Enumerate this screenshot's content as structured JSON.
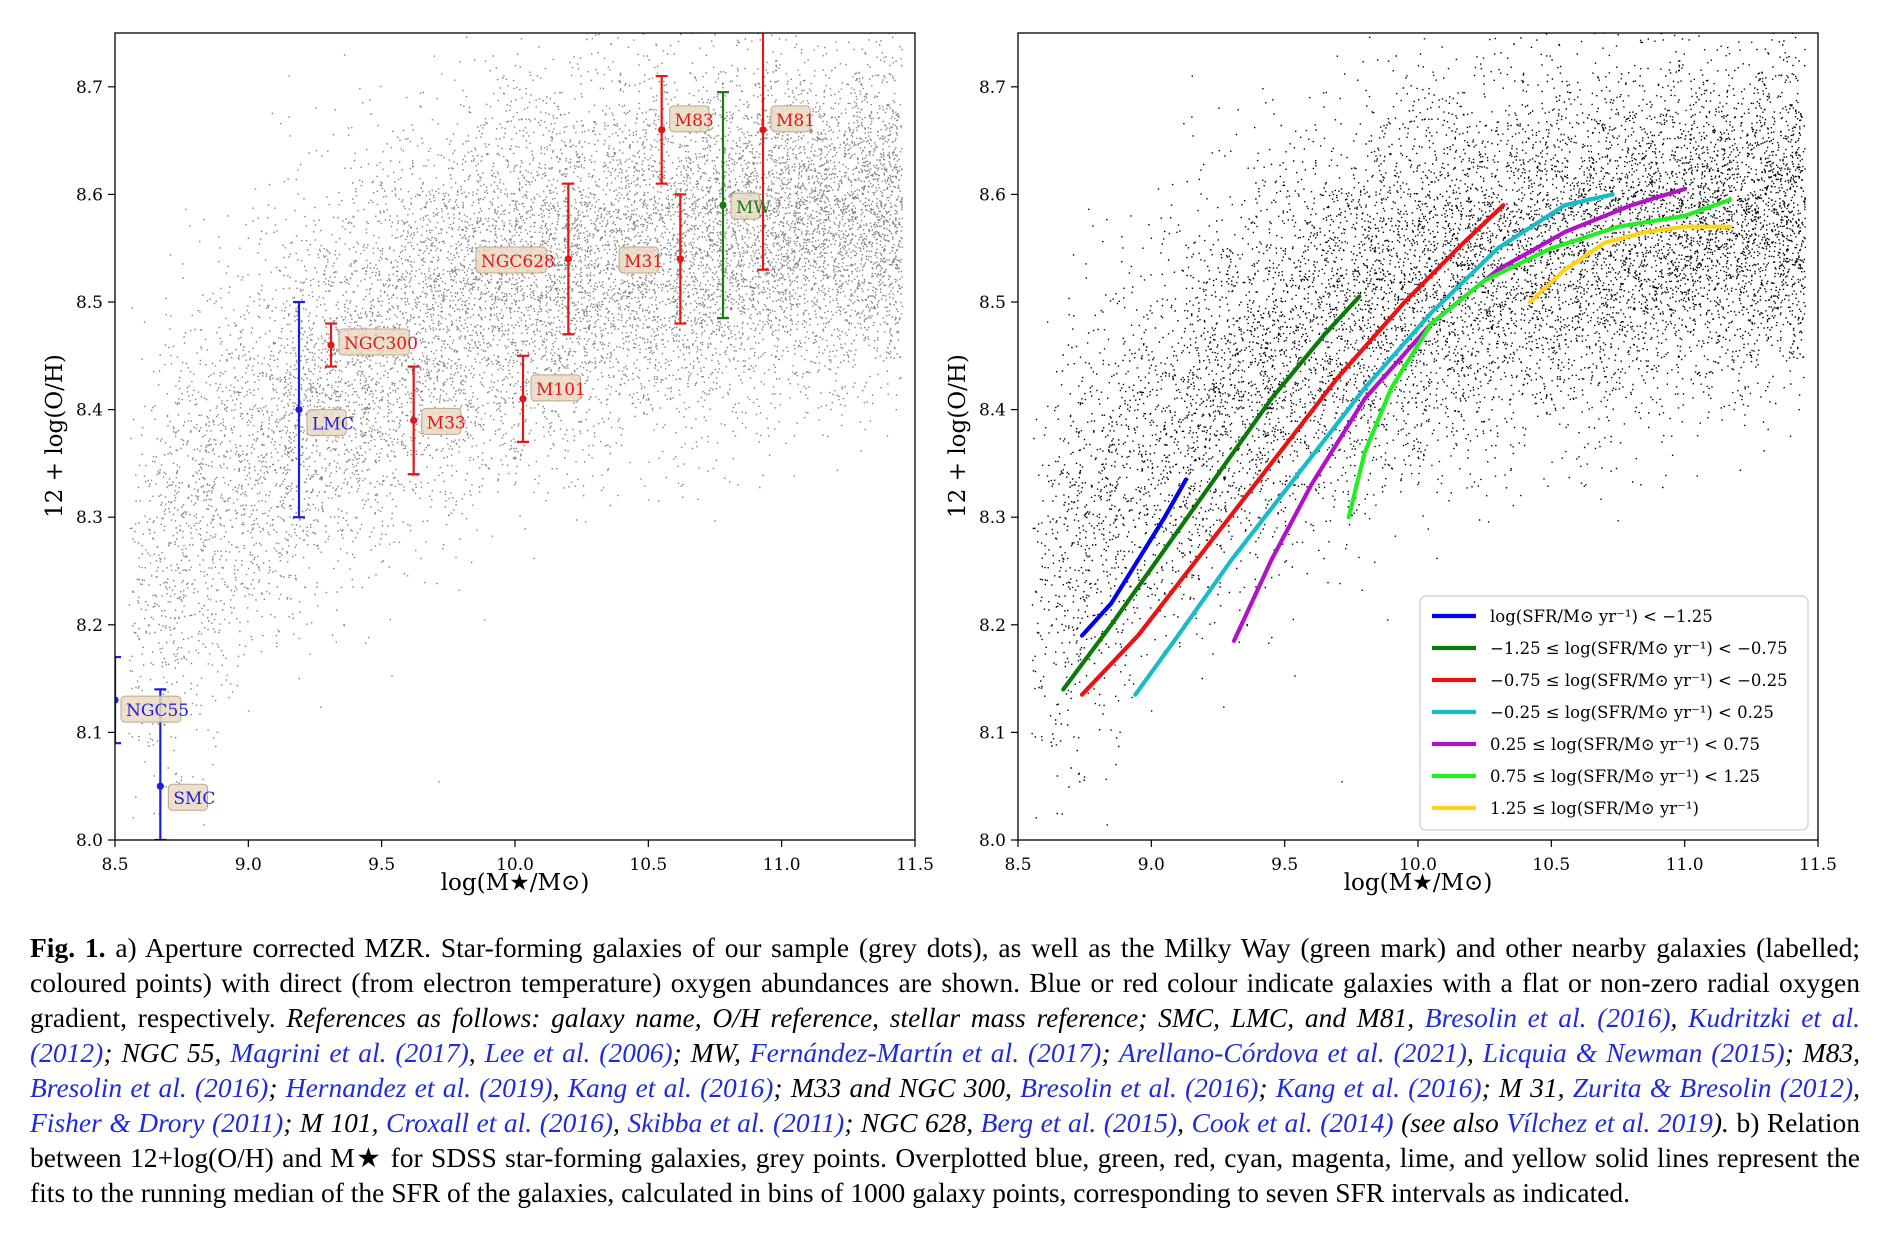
{
  "panels": [
    {
      "id": "a",
      "xlabel": "log(M★/M⊙)",
      "ylabel": "12 + log(O/H)",
      "xlim": [
        8.5,
        11.5
      ],
      "ylim": [
        8.0,
        8.75
      ],
      "xticks": [
        "8.5",
        "9.0",
        "9.5",
        "10.0",
        "10.5",
        "11.0",
        "11.5"
      ],
      "yticks": [
        "8.0",
        "8.1",
        "8.2",
        "8.3",
        "8.4",
        "8.5",
        "8.6",
        "8.7"
      ],
      "background_points_color": "#808080"
    },
    {
      "id": "b",
      "xlabel": "log(M★/M⊙)",
      "ylabel": "12 + log(O/H)",
      "xlim": [
        8.5,
        11.5
      ],
      "ylim": [
        8.0,
        8.75
      ],
      "xticks": [
        "8.5",
        "9.0",
        "9.5",
        "10.0",
        "10.5",
        "11.0",
        "11.5"
      ],
      "yticks": [
        "8.0",
        "8.1",
        "8.2",
        "8.3",
        "8.4",
        "8.5",
        "8.6",
        "8.7"
      ],
      "background_points_color": "#000000",
      "legend_position": "lower-right"
    }
  ],
  "chart_data": [
    {
      "type": "scatter",
      "panel": "a",
      "xlabel": "log(M★/M⊙)",
      "ylabel": "12 + log(O/H)",
      "xlim": [
        8.5,
        11.5
      ],
      "ylim": [
        8.0,
        8.75
      ],
      "galaxies": [
        {
          "name": "NGC55",
          "x": 8.5,
          "y": 8.13,
          "yerr_low": 8.09,
          "yerr_high": 8.17,
          "color": "#1f1fd6"
        },
        {
          "name": "SMC",
          "x": 8.67,
          "y": 8.05,
          "yerr_low": 8.0,
          "yerr_high": 8.14,
          "color": "#1f1fd6"
        },
        {
          "name": "LMC",
          "x": 9.19,
          "y": 8.4,
          "yerr_low": 8.3,
          "yerr_high": 8.5,
          "color": "#1f1fd6"
        },
        {
          "name": "NGC300",
          "x": 9.31,
          "y": 8.46,
          "yerr_low": 8.44,
          "yerr_high": 8.48,
          "color": "#e01818"
        },
        {
          "name": "M33",
          "x": 9.62,
          "y": 8.39,
          "yerr_low": 8.34,
          "yerr_high": 8.44,
          "color": "#e01818"
        },
        {
          "name": "M101",
          "x": 10.03,
          "y": 8.41,
          "yerr_low": 8.37,
          "yerr_high": 8.45,
          "color": "#e01818"
        },
        {
          "name": "NGC628",
          "x": 10.2,
          "y": 8.54,
          "yerr_low": 8.47,
          "yerr_high": 8.61,
          "color": "#e01818"
        },
        {
          "name": "M31",
          "x": 10.62,
          "y": 8.54,
          "yerr_low": 8.48,
          "yerr_high": 8.6,
          "color": "#e01818"
        },
        {
          "name": "M83",
          "x": 10.55,
          "y": 8.66,
          "yerr_low": 8.61,
          "yerr_high": 8.71,
          "color": "#e01818"
        },
        {
          "name": "MW",
          "x": 10.78,
          "y": 8.59,
          "yerr_low": 8.485,
          "yerr_high": 8.695,
          "color": "#1a7a1a"
        },
        {
          "name": "M81",
          "x": 10.93,
          "y": 8.66,
          "yerr_low": 8.53,
          "yerr_high": 8.76,
          "color": "#e01818"
        }
      ]
    },
    {
      "type": "line",
      "panel": "b",
      "xlabel": "log(M★/M⊙)",
      "ylabel": "12 + log(O/H)",
      "xlim": [
        8.5,
        11.5
      ],
      "ylim": [
        8.0,
        8.75
      ],
      "series": [
        {
          "name": "log(SFR/M⊙ yr⁻¹) < −1.25",
          "color": "#0000ee",
          "x": [
            8.74,
            8.85,
            8.95,
            9.05,
            9.13
          ],
          "y": [
            8.19,
            8.22,
            8.26,
            8.3,
            8.335
          ]
        },
        {
          "name": "−1.25 ≤ log(SFR/M⊙ yr⁻¹) < −0.75",
          "color": "#0a7a0a",
          "x": [
            8.67,
            8.85,
            9.05,
            9.25,
            9.45,
            9.65,
            9.78
          ],
          "y": [
            8.14,
            8.2,
            8.27,
            8.34,
            8.41,
            8.47,
            8.505
          ]
        },
        {
          "name": "−0.75 ≤ log(SFR/M⊙ yr⁻¹) < −0.25",
          "color": "#ee1111",
          "x": [
            8.74,
            8.95,
            9.2,
            9.45,
            9.7,
            9.95,
            10.15,
            10.32
          ],
          "y": [
            8.135,
            8.19,
            8.27,
            8.35,
            8.43,
            8.5,
            8.55,
            8.59
          ]
        },
        {
          "name": "−0.25 ≤ log(SFR/M⊙ yr⁻¹) < 0.25",
          "color": "#17bcc8",
          "x": [
            8.94,
            9.1,
            9.3,
            9.55,
            9.8,
            10.05,
            10.3,
            10.55,
            10.73
          ],
          "y": [
            8.135,
            8.19,
            8.26,
            8.34,
            8.42,
            8.49,
            8.55,
            8.59,
            8.6
          ]
        },
        {
          "name": "0.25 ≤ log(SFR/M⊙ yr⁻¹) < 0.75",
          "color": "#b012c8",
          "x": [
            9.31,
            9.45,
            9.6,
            9.8,
            10.05,
            10.3,
            10.55,
            10.8,
            11.0
          ],
          "y": [
            8.185,
            8.26,
            8.33,
            8.41,
            8.48,
            8.53,
            8.565,
            8.59,
            8.605
          ]
        },
        {
          "name": "0.75 ≤ log(SFR/M⊙ yr⁻¹) < 1.25",
          "color": "#22ee22",
          "x": [
            9.74,
            9.8,
            9.9,
            10.05,
            10.25,
            10.5,
            10.75,
            11.0,
            11.17
          ],
          "y": [
            8.3,
            8.36,
            8.42,
            8.48,
            8.52,
            8.55,
            8.57,
            8.58,
            8.595
          ]
        },
        {
          "name": "1.25 ≤ log(SFR/M⊙ yr⁻¹)",
          "color": "#ffd21a",
          "x": [
            10.42,
            10.55,
            10.7,
            10.85,
            11.0,
            11.17
          ],
          "y": [
            8.5,
            8.53,
            8.555,
            8.565,
            8.57,
            8.57
          ]
        }
      ]
    }
  ],
  "caption": {
    "label": "Fig. 1.",
    "text_a": "a) Aperture corrected MZR. Star-forming galaxies of our sample (grey dots), as well as the Milky Way (green mark) and other nearby galaxies (labelled; coloured points) with direct (from electron temperature) oxygen abundances are shown. Blue or red colour indicate galaxies with a flat or non-zero radial oxygen gradient, respectively.",
    "refs_intro": "References as follows: galaxy name, O/H reference, stellar mass reference; SMC, LMC, and M81,",
    "r1": "Bresolin et al. (2016)",
    "s1": ",",
    "r2": "Kudritzki et al. (2012)",
    "s2": "; NGC 55,",
    "r3": "Magrini et al. (2017)",
    "s3": ",",
    "r4": "Lee et al. (2006)",
    "s4": "; MW,",
    "r5": "Fernández-Martín et al. (2017)",
    "s5": ";",
    "r6": "Arellano-Córdova et al. (2021)",
    "s6": ",",
    "r7": "Licquia & Newman (2015)",
    "s7": "; M83,",
    "r8": "Bresolin et al. (2016)",
    "s8": ";",
    "r9": "Hernandez et al. (2019)",
    "s9": ",",
    "r10": "Kang et al. (2016)",
    "s10": "; M33 and NGC 300,",
    "r11": "Bresolin et al. (2016)",
    "s11": ";",
    "r12": "Kang et al. (2016)",
    "s12": "; M 31,",
    "r13": "Zurita & Bresolin (2012)",
    "s13": ",",
    "r14": "Fisher & Drory (2011)",
    "s14": "; M 101,",
    "r15": "Croxall et al. (2016)",
    "s15": ",",
    "r16": "Skibba et al. (2011)",
    "s16": "; NGC 628,",
    "r17": "Berg et al. (2015)",
    "s17": ",",
    "r18": "Cook et al. (2014)",
    "s18": " (see also",
    "r19": "Vílchez et al. 2019",
    "s19": ").",
    "text_b": "b) Relation between 12+log(O/H) and M★ for SDSS star-forming galaxies, grey points. Overplotted blue, green, red, cyan, magenta, lime, and yellow solid lines represent the fits to the running median of the SFR of the galaxies, calculated in bins of 1000 galaxy points, corresponding to seven SFR intervals as indicated."
  }
}
